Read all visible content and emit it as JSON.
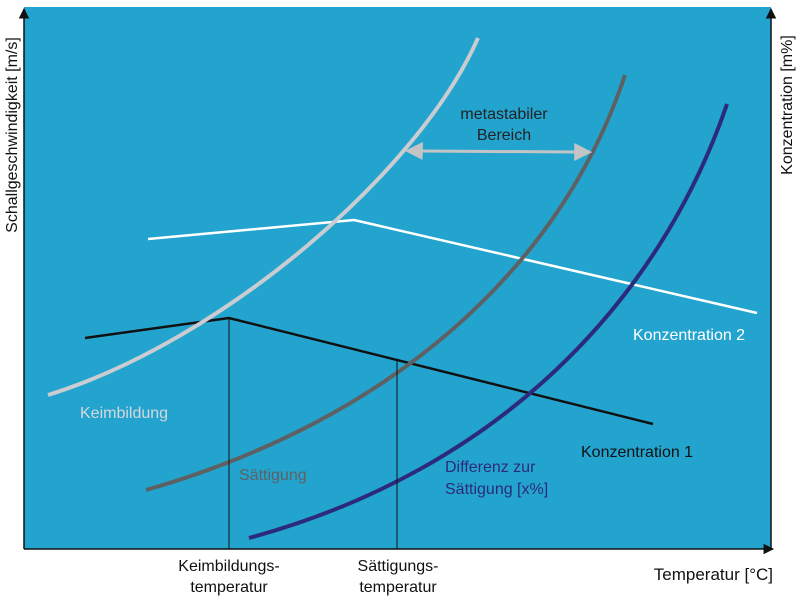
{
  "axes": {
    "y_left_label": "Schallgeschwindigkeit [m/s]",
    "y_right_label": "Konzentration [m%]",
    "x_label": "Temperatur [°C]"
  },
  "labels": {
    "keimbildung": "Keimbildung",
    "saettigung": "Sättigung",
    "differenz_line1": "Differenz zur",
    "differenz_line2": "Sättigung [x%]",
    "konzentration1": "Konzentration 1",
    "konzentration2": "Konzentration 2",
    "metastabil_line1": "metastabiler",
    "metastabil_line2": "Bereich",
    "keimtemp_line1": "Keimbildungs-",
    "keimtemp_line2": "temperatur",
    "saettemp_line1": "Sättigungs-",
    "saettemp_line2": "temperatur"
  },
  "colors": {
    "background": "#23a4cf",
    "keimbildung_curve": "#c9ccd0",
    "saettigung_curve": "#5e6163",
    "differenz_curve": "#2c2a7c",
    "konzentration1_line": "#111111",
    "konzentration2_line": "#ffffff",
    "axis": "#111111",
    "arrow": "#c3c4c6"
  }
}
